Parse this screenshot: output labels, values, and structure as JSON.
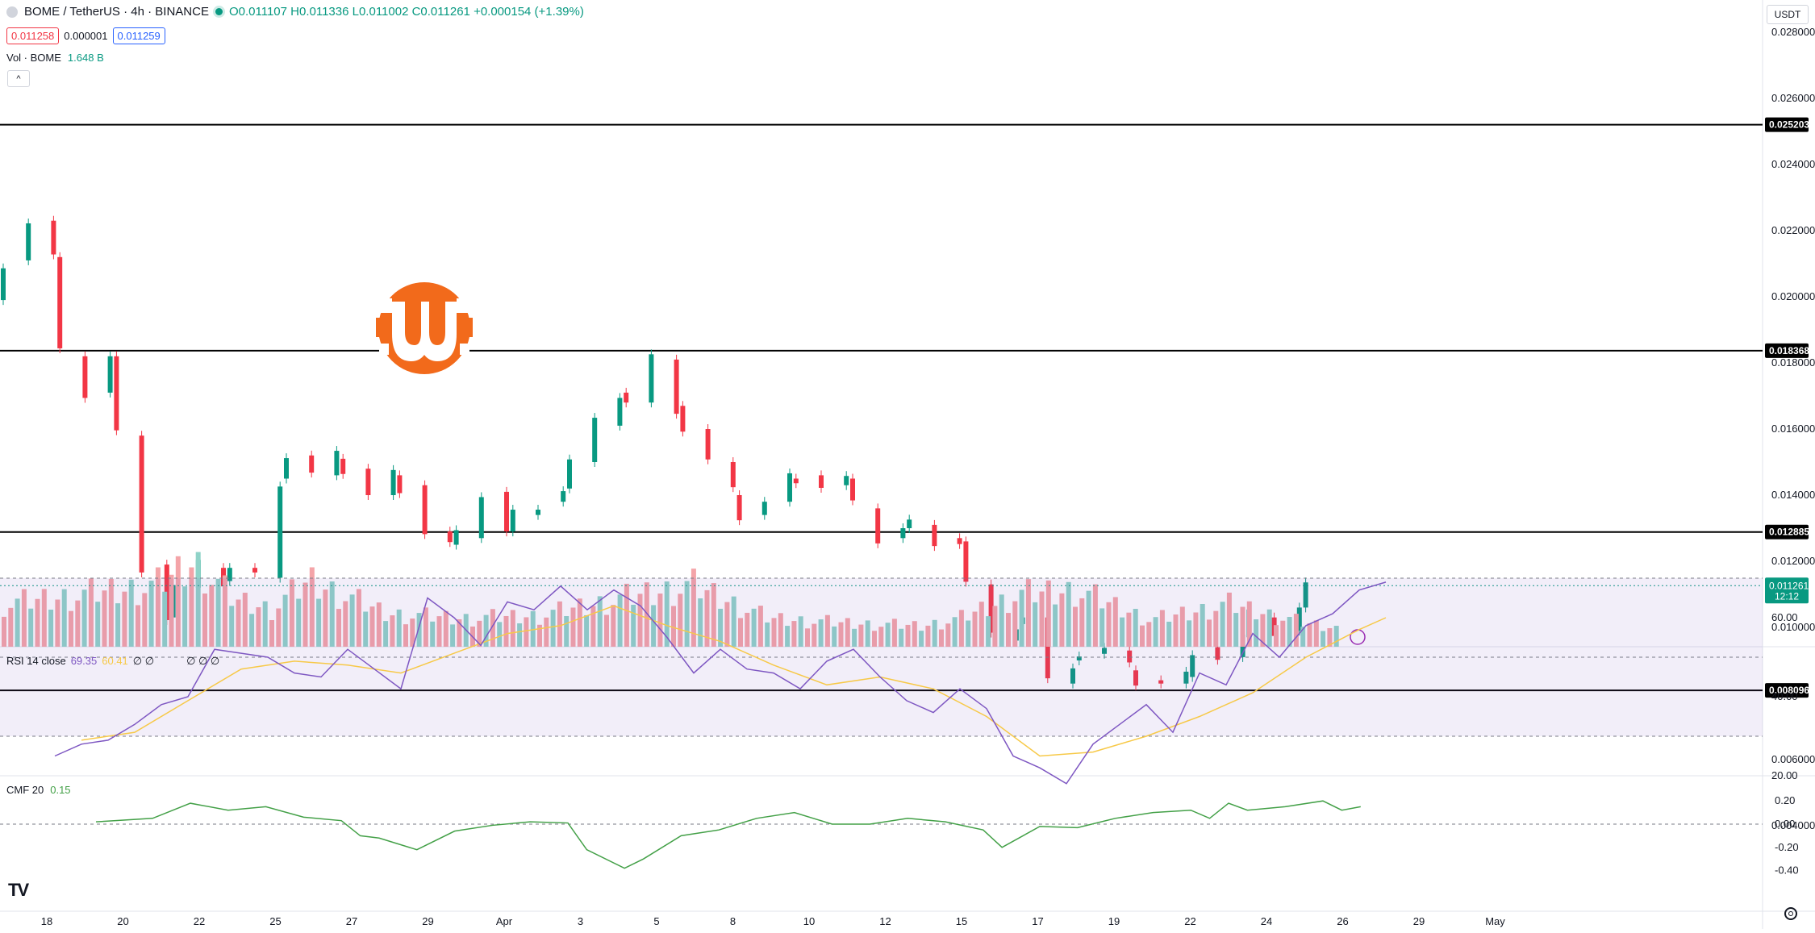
{
  "header": {
    "symbol": "BOME / TetherUS · 4h · BINANCE",
    "open": "O0.011107",
    "high": "H0.011336",
    "low": "L0.011002",
    "close": "C0.011261",
    "change": "+0.000154 (+1.39%)",
    "bid": "0.011258",
    "spread": "0.000001",
    "ask": "0.011259"
  },
  "volume_legend": {
    "label": "Vol · BOME",
    "value": "1.648 B"
  },
  "currency": "USDT",
  "rsi_legend": {
    "label": "RSI 14 close",
    "rsi_value": "69.35",
    "ma_value": "60.41",
    "zeros": "∅ ∅",
    "zeros2": "∅ ∅ ∅"
  },
  "cmf_legend": {
    "label": "CMF 20",
    "value": "0.15"
  },
  "price_labels": {
    "current": "0.011261",
    "countdown": "12:12",
    "levels": [
      "0.025203",
      "0.018368",
      "0.012885",
      "0.008096"
    ]
  },
  "colors": {
    "up": "#089981",
    "down": "#f23645",
    "vol_up": "#8fd3c8",
    "vol_down": "#f4a4a8",
    "rsi": "#7e57c2",
    "rsi_ma": "#f7c948",
    "cmf": "#43a047"
  },
  "chart_data": [
    {
      "type": "candlestick",
      "title": "BOME / TetherUS · 4h · BINANCE",
      "y_axis_ticks": [
        "0.028000",
        "0.026000",
        "0.024000",
        "0.022000",
        "0.020000",
        "0.018000",
        "0.016000",
        "0.014000",
        "0.012000",
        "0.010000",
        "0.006000",
        "0.004000"
      ],
      "x_axis_ticks": [
        "18",
        "20",
        "22",
        "25",
        "27",
        "29",
        "Apr",
        "3",
        "5",
        "8",
        "10",
        "12",
        "15",
        "17",
        "19",
        "22",
        "24",
        "26",
        "29",
        "May"
      ],
      "horizontal_levels": [
        0.025203,
        0.018368,
        0.012885,
        0.008096
      ],
      "close_path": [
        [
          0,
          0.0199
        ],
        [
          2,
          0.0223
        ],
        [
          3,
          0.0212
        ],
        [
          4,
          0.0182
        ],
        [
          5,
          0.0171
        ],
        [
          6,
          0.0182
        ],
        [
          7,
          0.0158
        ],
        [
          8,
          0.0119
        ],
        [
          9,
          0.0103
        ],
        [
          10,
          0.0112
        ],
        [
          11,
          0.0118
        ],
        [
          12,
          0.0114
        ],
        [
          13,
          0.0118
        ],
        [
          14,
          0.0115
        ],
        [
          15,
          0.0145
        ],
        [
          16,
          0.0152
        ],
        [
          17,
          0.0146
        ],
        [
          18,
          0.0151
        ],
        [
          19,
          0.0148
        ],
        [
          20,
          0.014
        ],
        [
          21,
          0.0146
        ],
        [
          22,
          0.0143
        ],
        [
          23,
          0.0129
        ],
        [
          24,
          0.0125
        ],
        [
          25,
          0.0127
        ],
        [
          26,
          0.0141
        ],
        [
          27,
          0.0129
        ],
        [
          28,
          0.0134
        ],
        [
          29,
          0.0138
        ],
        [
          30,
          0.0142
        ],
        [
          31,
          0.015
        ],
        [
          32,
          0.0161
        ],
        [
          33,
          0.0171
        ],
        [
          34,
          0.0168
        ],
        [
          35,
          0.0181
        ],
        [
          36,
          0.0167
        ],
        [
          37,
          0.016
        ],
        [
          38,
          0.015
        ],
        [
          39,
          0.014
        ],
        [
          40,
          0.0134
        ],
        [
          41,
          0.0138
        ],
        [
          42,
          0.0145
        ],
        [
          43,
          0.0146
        ],
        [
          44,
          0.0143
        ],
        [
          45,
          0.0145
        ],
        [
          46,
          0.0136
        ],
        [
          47,
          0.0127
        ],
        [
          48,
          0.013
        ],
        [
          49,
          0.0131
        ],
        [
          50,
          0.0127
        ],
        [
          51,
          0.0126
        ],
        [
          52,
          0.0113
        ],
        [
          53,
          0.0096
        ],
        [
          54,
          0.0101
        ],
        [
          55,
          0.0103
        ],
        [
          56,
          0.0083
        ],
        [
          57,
          0.009
        ],
        [
          58,
          0.0092
        ],
        [
          59,
          0.0093
        ],
        [
          60,
          0.0087
        ],
        [
          61,
          0.0084
        ],
        [
          62,
          0.0083
        ],
        [
          63,
          0.0085
        ],
        [
          64,
          0.0094
        ],
        [
          65,
          0.0091
        ],
        [
          66,
          0.0097
        ],
        [
          67,
          0.0103
        ],
        [
          68,
          0.0099
        ],
        [
          69,
          0.0106
        ],
        [
          70,
          0.0112
        ]
      ],
      "volume_path": [
        [
          0,
          0.45
        ],
        [
          4,
          0.55
        ],
        [
          8,
          0.65
        ],
        [
          10,
          0.9
        ],
        [
          12,
          0.5
        ],
        [
          14,
          0.4
        ],
        [
          16,
          0.7
        ],
        [
          20,
          0.35
        ],
        [
          24,
          0.3
        ],
        [
          28,
          0.33
        ],
        [
          32,
          0.5
        ],
        [
          36,
          0.65
        ],
        [
          40,
          0.3
        ],
        [
          44,
          0.25
        ],
        [
          48,
          0.22
        ],
        [
          50,
          0.3
        ],
        [
          53,
          0.55
        ],
        [
          56,
          0.6
        ],
        [
          60,
          0.28
        ],
        [
          64,
          0.45
        ],
        [
          68,
          0.25
        ],
        [
          70,
          0.18
        ]
      ]
    },
    {
      "type": "line",
      "title": "RSI 14 close",
      "y_axis_ticks": [
        "60.00",
        "40.00",
        "20.00"
      ],
      "bands": [
        70,
        50,
        30
      ],
      "series": [
        {
          "name": "RSI",
          "values": [
            [
              4,
              25
            ],
            [
              6,
              28
            ],
            [
              8,
              29
            ],
            [
              10,
              33
            ],
            [
              12,
              38
            ],
            [
              14,
              40
            ],
            [
              16,
              52
            ],
            [
              18,
              51
            ],
            [
              20,
              50
            ],
            [
              22,
              46
            ],
            [
              24,
              45
            ],
            [
              26,
              52
            ],
            [
              28,
              47
            ],
            [
              30,
              42
            ],
            [
              32,
              65
            ],
            [
              34,
              60
            ],
            [
              36,
              53
            ],
            [
              38,
              64
            ],
            [
              40,
              62
            ],
            [
              42,
              68
            ],
            [
              44,
              62
            ],
            [
              46,
              67
            ],
            [
              48,
              63
            ],
            [
              50,
              55
            ],
            [
              52,
              46
            ],
            [
              54,
              52
            ],
            [
              56,
              47
            ],
            [
              58,
              46
            ],
            [
              60,
              42
            ],
            [
              62,
              49
            ],
            [
              64,
              52
            ],
            [
              66,
              45
            ],
            [
              68,
              39
            ],
            [
              70,
              36
            ],
            [
              72,
              42
            ],
            [
              74,
              37
            ],
            [
              76,
              25
            ],
            [
              78,
              22
            ],
            [
              80,
              18
            ],
            [
              82,
              28
            ],
            [
              84,
              33
            ],
            [
              86,
              38
            ],
            [
              88,
              31
            ],
            [
              90,
              46
            ],
            [
              92,
              43
            ],
            [
              94,
              56
            ],
            [
              96,
              50
            ],
            [
              98,
              58
            ],
            [
              100,
              61
            ],
            [
              102,
              67
            ],
            [
              104,
              69
            ]
          ]
        },
        {
          "name": "RSI-based MA",
          "values": [
            [
              6,
              29
            ],
            [
              10,
              31
            ],
            [
              14,
              39
            ],
            [
              18,
              47
            ],
            [
              22,
              49
            ],
            [
              26,
              48
            ],
            [
              30,
              46
            ],
            [
              34,
              51
            ],
            [
              38,
              56
            ],
            [
              42,
              58
            ],
            [
              46,
              63
            ],
            [
              50,
              58
            ],
            [
              54,
              54
            ],
            [
              58,
              48
            ],
            [
              62,
              43
            ],
            [
              66,
              45
            ],
            [
              70,
              42
            ],
            [
              74,
              35
            ],
            [
              78,
              25
            ],
            [
              82,
              26
            ],
            [
              86,
              30
            ],
            [
              90,
              35
            ],
            [
              94,
              41
            ],
            [
              98,
              50
            ],
            [
              102,
              57
            ],
            [
              104,
              60
            ]
          ]
        }
      ]
    },
    {
      "type": "line",
      "title": "CMF 20",
      "y_axis_ticks": [
        "0.20",
        "0.00",
        "-0.20",
        "-0.40"
      ],
      "series": [
        {
          "name": "CMF",
          "values": [
            [
              5,
              0.02
            ],
            [
              8,
              0.05
            ],
            [
              10,
              0.18
            ],
            [
              12,
              0.12
            ],
            [
              14,
              0.15
            ],
            [
              16,
              0.06
            ],
            [
              18,
              0.03
            ],
            [
              19,
              -0.1
            ],
            [
              20,
              -0.12
            ],
            [
              22,
              -0.22
            ],
            [
              24,
              -0.06
            ],
            [
              26,
              -0.01
            ],
            [
              28,
              0.02
            ],
            [
              30,
              0.01
            ],
            [
              31,
              -0.22
            ],
            [
              33,
              -0.38
            ],
            [
              34,
              -0.3
            ],
            [
              36,
              -0.1
            ],
            [
              38,
              -0.05
            ],
            [
              40,
              0.05
            ],
            [
              42,
              0.1
            ],
            [
              44,
              0.0
            ],
            [
              46,
              0.0
            ],
            [
              48,
              0.05
            ],
            [
              50,
              0.02
            ],
            [
              52,
              -0.05
            ],
            [
              53,
              -0.2
            ],
            [
              55,
              -0.02
            ],
            [
              57,
              -0.03
            ],
            [
              59,
              0.05
            ],
            [
              61,
              0.1
            ],
            [
              63,
              0.12
            ],
            [
              64,
              0.05
            ],
            [
              65,
              0.18
            ],
            [
              66,
              0.12
            ],
            [
              68,
              0.15
            ],
            [
              70,
              0.2
            ],
            [
              71,
              0.12
            ],
            [
              72,
              0.15
            ]
          ]
        }
      ]
    }
  ]
}
